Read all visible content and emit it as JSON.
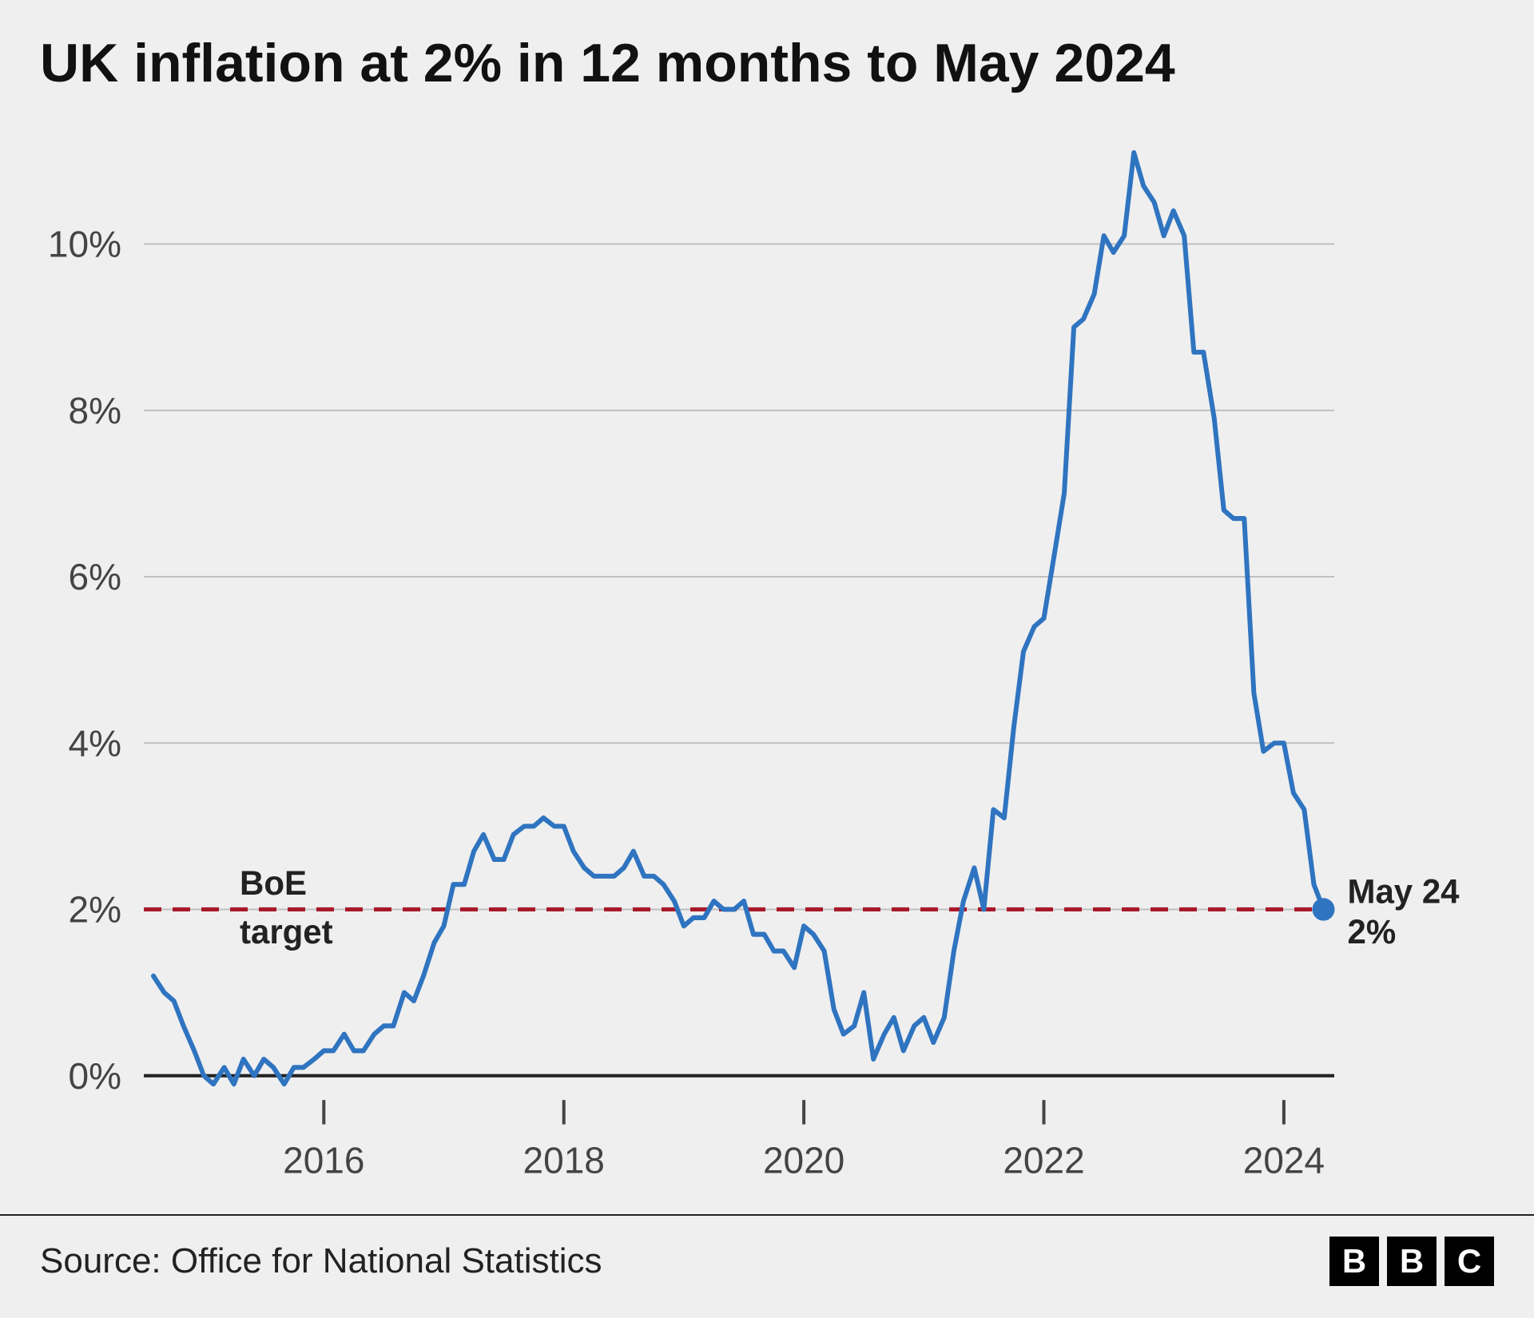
{
  "title": "UK inflation at 2% in 12 months to May 2024",
  "source_prefix": "Source: ",
  "source_name": "Office for National Statistics",
  "logo_letters": [
    "B",
    "B",
    "C"
  ],
  "chart": {
    "type": "line",
    "background_color": "#efefef",
    "grid_color": "#bfbfbf",
    "axis_color": "#222222",
    "line_color": "#2f74c0",
    "line_width": 6,
    "target_line_color": "#a8192a",
    "target_line_width": 5,
    "target_line_dash": "22 14",
    "endpoint_marker_color": "#2f74c0",
    "endpoint_marker_radius": 14,
    "x_domain": [
      2014.5,
      2024.42
    ],
    "x_ticks": [
      2016,
      2018,
      2020,
      2022,
      2024
    ],
    "x_tick_labels": [
      "2016",
      "2018",
      "2020",
      "2022",
      "2024"
    ],
    "y_domain": [
      -0.3,
      11.2
    ],
    "y_ticks": [
      0,
      2,
      4,
      6,
      8,
      10
    ],
    "y_tick_labels": [
      "0%",
      "2%",
      "4%",
      "6%",
      "8%",
      "10%"
    ],
    "title_fontsize": 68,
    "tick_fontsize": 46,
    "anno_fontsize": 42,
    "target_value": 2.0,
    "target_label_line1": "BoE",
    "target_label_line2": "target",
    "endpoint_label_line1": "May 24",
    "endpoint_label_line2": "2%",
    "series": [
      {
        "x": 2014.58,
        "y": 1.2
      },
      {
        "x": 2014.67,
        "y": 1.0
      },
      {
        "x": 2014.75,
        "y": 0.9
      },
      {
        "x": 2014.83,
        "y": 0.6
      },
      {
        "x": 2014.92,
        "y": 0.3
      },
      {
        "x": 2015.0,
        "y": 0.0
      },
      {
        "x": 2015.08,
        "y": -0.1
      },
      {
        "x": 2015.17,
        "y": 0.1
      },
      {
        "x": 2015.25,
        "y": -0.1
      },
      {
        "x": 2015.33,
        "y": 0.2
      },
      {
        "x": 2015.42,
        "y": 0.0
      },
      {
        "x": 2015.5,
        "y": 0.2
      },
      {
        "x": 2015.58,
        "y": 0.1
      },
      {
        "x": 2015.67,
        "y": -0.1
      },
      {
        "x": 2015.75,
        "y": 0.1
      },
      {
        "x": 2015.83,
        "y": 0.1
      },
      {
        "x": 2015.92,
        "y": 0.2
      },
      {
        "x": 2016.0,
        "y": 0.3
      },
      {
        "x": 2016.08,
        "y": 0.3
      },
      {
        "x": 2016.17,
        "y": 0.5
      },
      {
        "x": 2016.25,
        "y": 0.3
      },
      {
        "x": 2016.33,
        "y": 0.3
      },
      {
        "x": 2016.42,
        "y": 0.5
      },
      {
        "x": 2016.5,
        "y": 0.6
      },
      {
        "x": 2016.58,
        "y": 0.6
      },
      {
        "x": 2016.67,
        "y": 1.0
      },
      {
        "x": 2016.75,
        "y": 0.9
      },
      {
        "x": 2016.83,
        "y": 1.2
      },
      {
        "x": 2016.92,
        "y": 1.6
      },
      {
        "x": 2017.0,
        "y": 1.8
      },
      {
        "x": 2017.08,
        "y": 2.3
      },
      {
        "x": 2017.17,
        "y": 2.3
      },
      {
        "x": 2017.25,
        "y": 2.7
      },
      {
        "x": 2017.33,
        "y": 2.9
      },
      {
        "x": 2017.42,
        "y": 2.6
      },
      {
        "x": 2017.5,
        "y": 2.6
      },
      {
        "x": 2017.58,
        "y": 2.9
      },
      {
        "x": 2017.67,
        "y": 3.0
      },
      {
        "x": 2017.75,
        "y": 3.0
      },
      {
        "x": 2017.83,
        "y": 3.1
      },
      {
        "x": 2017.92,
        "y": 3.0
      },
      {
        "x": 2018.0,
        "y": 3.0
      },
      {
        "x": 2018.08,
        "y": 2.7
      },
      {
        "x": 2018.17,
        "y": 2.5
      },
      {
        "x": 2018.25,
        "y": 2.4
      },
      {
        "x": 2018.33,
        "y": 2.4
      },
      {
        "x": 2018.42,
        "y": 2.4
      },
      {
        "x": 2018.5,
        "y": 2.5
      },
      {
        "x": 2018.58,
        "y": 2.7
      },
      {
        "x": 2018.67,
        "y": 2.4
      },
      {
        "x": 2018.75,
        "y": 2.4
      },
      {
        "x": 2018.83,
        "y": 2.3
      },
      {
        "x": 2018.92,
        "y": 2.1
      },
      {
        "x": 2019.0,
        "y": 1.8
      },
      {
        "x": 2019.08,
        "y": 1.9
      },
      {
        "x": 2019.17,
        "y": 1.9
      },
      {
        "x": 2019.25,
        "y": 2.1
      },
      {
        "x": 2019.33,
        "y": 2.0
      },
      {
        "x": 2019.42,
        "y": 2.0
      },
      {
        "x": 2019.5,
        "y": 2.1
      },
      {
        "x": 2019.58,
        "y": 1.7
      },
      {
        "x": 2019.67,
        "y": 1.7
      },
      {
        "x": 2019.75,
        "y": 1.5
      },
      {
        "x": 2019.83,
        "y": 1.5
      },
      {
        "x": 2019.92,
        "y": 1.3
      },
      {
        "x": 2020.0,
        "y": 1.8
      },
      {
        "x": 2020.08,
        "y": 1.7
      },
      {
        "x": 2020.17,
        "y": 1.5
      },
      {
        "x": 2020.25,
        "y": 0.8
      },
      {
        "x": 2020.33,
        "y": 0.5
      },
      {
        "x": 2020.42,
        "y": 0.6
      },
      {
        "x": 2020.5,
        "y": 1.0
      },
      {
        "x": 2020.58,
        "y": 0.2
      },
      {
        "x": 2020.67,
        "y": 0.5
      },
      {
        "x": 2020.75,
        "y": 0.7
      },
      {
        "x": 2020.83,
        "y": 0.3
      },
      {
        "x": 2020.92,
        "y": 0.6
      },
      {
        "x": 2021.0,
        "y": 0.7
      },
      {
        "x": 2021.08,
        "y": 0.4
      },
      {
        "x": 2021.17,
        "y": 0.7
      },
      {
        "x": 2021.25,
        "y": 1.5
      },
      {
        "x": 2021.33,
        "y": 2.1
      },
      {
        "x": 2021.42,
        "y": 2.5
      },
      {
        "x": 2021.5,
        "y": 2.0
      },
      {
        "x": 2021.58,
        "y": 3.2
      },
      {
        "x": 2021.67,
        "y": 3.1
      },
      {
        "x": 2021.75,
        "y": 4.2
      },
      {
        "x": 2021.83,
        "y": 5.1
      },
      {
        "x": 2021.92,
        "y": 5.4
      },
      {
        "x": 2022.0,
        "y": 5.5
      },
      {
        "x": 2022.08,
        "y": 6.2
      },
      {
        "x": 2022.17,
        "y": 7.0
      },
      {
        "x": 2022.25,
        "y": 9.0
      },
      {
        "x": 2022.33,
        "y": 9.1
      },
      {
        "x": 2022.42,
        "y": 9.4
      },
      {
        "x": 2022.5,
        "y": 10.1
      },
      {
        "x": 2022.58,
        "y": 9.9
      },
      {
        "x": 2022.67,
        "y": 10.1
      },
      {
        "x": 2022.75,
        "y": 11.1
      },
      {
        "x": 2022.83,
        "y": 10.7
      },
      {
        "x": 2022.92,
        "y": 10.5
      },
      {
        "x": 2023.0,
        "y": 10.1
      },
      {
        "x": 2023.08,
        "y": 10.4
      },
      {
        "x": 2023.17,
        "y": 10.1
      },
      {
        "x": 2023.25,
        "y": 8.7
      },
      {
        "x": 2023.33,
        "y": 8.7
      },
      {
        "x": 2023.42,
        "y": 7.9
      },
      {
        "x": 2023.5,
        "y": 6.8
      },
      {
        "x": 2023.58,
        "y": 6.7
      },
      {
        "x": 2023.67,
        "y": 6.7
      },
      {
        "x": 2023.75,
        "y": 4.6
      },
      {
        "x": 2023.83,
        "y": 3.9
      },
      {
        "x": 2023.92,
        "y": 4.0
      },
      {
        "x": 2024.0,
        "y": 4.0
      },
      {
        "x": 2024.08,
        "y": 3.4
      },
      {
        "x": 2024.17,
        "y": 3.2
      },
      {
        "x": 2024.25,
        "y": 2.3
      },
      {
        "x": 2024.33,
        "y": 2.0
      }
    ]
  }
}
